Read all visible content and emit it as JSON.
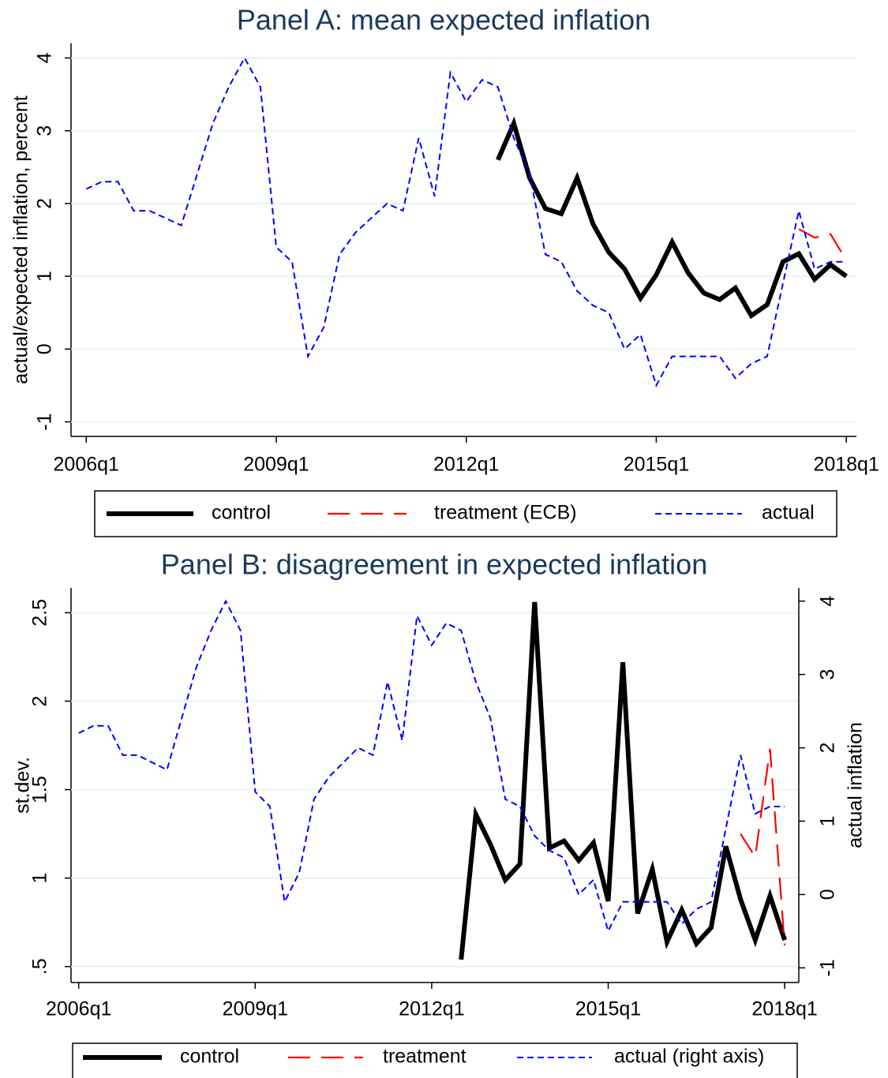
{
  "chart_data": [
    {
      "type": "line",
      "title": "Panel A: mean expected inflation",
      "y_label": "actual/expected inflation, percent",
      "x": [
        2006,
        2006.25,
        2006.5,
        2006.75,
        2007,
        2007.25,
        2007.5,
        2007.75,
        2008,
        2008.25,
        2008.5,
        2008.75,
        2009,
        2009.25,
        2009.5,
        2009.75,
        2010,
        2010.25,
        2010.5,
        2010.75,
        2011,
        2011.25,
        2011.5,
        2011.75,
        2012,
        2012.25,
        2012.5,
        2012.75,
        2013,
        2013.25,
        2013.5,
        2013.75,
        2014,
        2014.25,
        2014.5,
        2014.75,
        2015,
        2015.25,
        2015.5,
        2015.75,
        2016,
        2016.25,
        2016.5,
        2016.75,
        2017,
        2017.25,
        2017.5,
        2017.75,
        2018
      ],
      "xlim": [
        2005.76,
        2018.16
      ],
      "xticks": [
        {
          "value": 2006,
          "label": "2006q1"
        },
        {
          "value": 2009,
          "label": "2009q1"
        },
        {
          "value": 2012,
          "label": "2012q1"
        },
        {
          "value": 2015,
          "label": "2015q1"
        },
        {
          "value": 2018,
          "label": "2018q1"
        }
      ],
      "ylim": [
        -1.2,
        4.2
      ],
      "yticks": [
        -1,
        0,
        1,
        2,
        3,
        4
      ],
      "grid": true,
      "series": [
        {
          "name": "control",
          "color": "#000000",
          "values": [
            null,
            null,
            null,
            null,
            null,
            null,
            null,
            null,
            null,
            null,
            null,
            null,
            null,
            null,
            null,
            null,
            null,
            null,
            null,
            null,
            null,
            null,
            null,
            null,
            null,
            null,
            2.6,
            3.1,
            2.35,
            1.93,
            1.86,
            2.35,
            1.72,
            1.33,
            1.1,
            0.7,
            1.02,
            1.47,
            1.05,
            0.77,
            0.68,
            0.84,
            0.46,
            0.61,
            1.2,
            1.31,
            0.96,
            1.16,
            1.0
          ]
        },
        {
          "name": "treatment (ECB)",
          "color": "#ff0000",
          "values": [
            null,
            null,
            null,
            null,
            null,
            null,
            null,
            null,
            null,
            null,
            null,
            null,
            null,
            null,
            null,
            null,
            null,
            null,
            null,
            null,
            null,
            null,
            null,
            null,
            null,
            null,
            null,
            null,
            null,
            null,
            null,
            null,
            null,
            null,
            null,
            null,
            null,
            null,
            null,
            null,
            null,
            null,
            null,
            null,
            null,
            1.65,
            1.53,
            1.58,
            1.22
          ]
        },
        {
          "name": "actual",
          "color": "#0000ff",
          "values": [
            2.2,
            2.3,
            2.3,
            1.9,
            1.9,
            1.8,
            1.7,
            2.4,
            3.1,
            3.6,
            4.0,
            3.6,
            1.4,
            1.2,
            -0.1,
            0.3,
            1.3,
            1.6,
            1.8,
            2.0,
            1.9,
            2.9,
            2.1,
            3.8,
            3.4,
            3.7,
            3.6,
            2.9,
            2.4,
            1.3,
            1.2,
            0.8,
            0.6,
            0.5,
            0.0,
            0.2,
            -0.5,
            -0.1,
            -0.1,
            -0.1,
            -0.1,
            -0.4,
            -0.2,
            -0.1,
            0.9,
            1.9,
            1.1,
            1.2,
            1.2
          ]
        }
      ]
    },
    {
      "type": "line",
      "title": "Panel B: disagreement in expected inflation",
      "y_label": "st.dev.",
      "y2_label": "actual inflation",
      "x": [
        2006,
        2006.25,
        2006.5,
        2006.75,
        2007,
        2007.25,
        2007.5,
        2007.75,
        2008,
        2008.25,
        2008.5,
        2008.75,
        2009,
        2009.25,
        2009.5,
        2009.75,
        2010,
        2010.25,
        2010.5,
        2010.75,
        2011,
        2011.25,
        2011.5,
        2011.75,
        2012,
        2012.25,
        2012.5,
        2012.75,
        2013,
        2013.25,
        2013.5,
        2013.75,
        2014,
        2014.25,
        2014.5,
        2014.75,
        2015,
        2015.25,
        2015.5,
        2015.75,
        2016,
        2016.25,
        2016.5,
        2016.75,
        2017,
        2017.25,
        2017.5,
        2017.75,
        2018
      ],
      "xlim": [
        2005.87,
        2018.24
      ],
      "xticks": [
        {
          "value": 2006,
          "label": "2006q1"
        },
        {
          "value": 2009,
          "label": "2009q1"
        },
        {
          "value": 2012,
          "label": "2012q1"
        },
        {
          "value": 2015,
          "label": "2015q1"
        },
        {
          "value": 2018,
          "label": "2018q1"
        }
      ],
      "ylim": [
        0.41,
        2.64
      ],
      "yticks": [
        {
          "value": 0.5,
          "label": ".5"
        },
        1,
        1.5,
        2,
        2.5
      ],
      "y2lim": [
        -1.2,
        4.18
      ],
      "y2ticks": [
        -1,
        0,
        1,
        2,
        3,
        4
      ],
      "grid": true,
      "series": [
        {
          "name": "control",
          "color": "#000000",
          "values": [
            null,
            null,
            null,
            null,
            null,
            null,
            null,
            null,
            null,
            null,
            null,
            null,
            null,
            null,
            null,
            null,
            null,
            null,
            null,
            null,
            null,
            null,
            null,
            null,
            null,
            null,
            0.54,
            1.36,
            1.19,
            0.99,
            1.08,
            2.56,
            1.17,
            1.21,
            1.1,
            1.2,
            0.87,
            2.22,
            0.8,
            1.05,
            0.64,
            0.82,
            0.63,
            0.72,
            1.18,
            0.88,
            0.65,
            0.9,
            0.65
          ]
        },
        {
          "name": "treatment",
          "color": "#ff0000",
          "values": [
            null,
            null,
            null,
            null,
            null,
            null,
            null,
            null,
            null,
            null,
            null,
            null,
            null,
            null,
            null,
            null,
            null,
            null,
            null,
            null,
            null,
            null,
            null,
            null,
            null,
            null,
            null,
            null,
            null,
            null,
            null,
            null,
            null,
            null,
            null,
            null,
            null,
            null,
            null,
            null,
            null,
            null,
            null,
            null,
            null,
            1.25,
            1.12,
            1.73,
            0.62
          ]
        },
        {
          "name": "actual (right axis)",
          "color": "#0000ff",
          "axis": "y2",
          "values": [
            2.2,
            2.3,
            2.3,
            1.9,
            1.9,
            1.8,
            1.7,
            2.4,
            3.1,
            3.6,
            4.0,
            3.6,
            1.4,
            1.2,
            -0.1,
            0.3,
            1.3,
            1.6,
            1.8,
            2.0,
            1.9,
            2.9,
            2.1,
            3.8,
            3.4,
            3.7,
            3.6,
            2.9,
            2.4,
            1.3,
            1.2,
            0.8,
            0.6,
            0.5,
            0.0,
            0.2,
            -0.5,
            -0.1,
            -0.1,
            -0.1,
            -0.1,
            -0.4,
            -0.2,
            -0.1,
            0.9,
            1.9,
            1.1,
            1.2,
            1.2
          ]
        }
      ]
    }
  ]
}
